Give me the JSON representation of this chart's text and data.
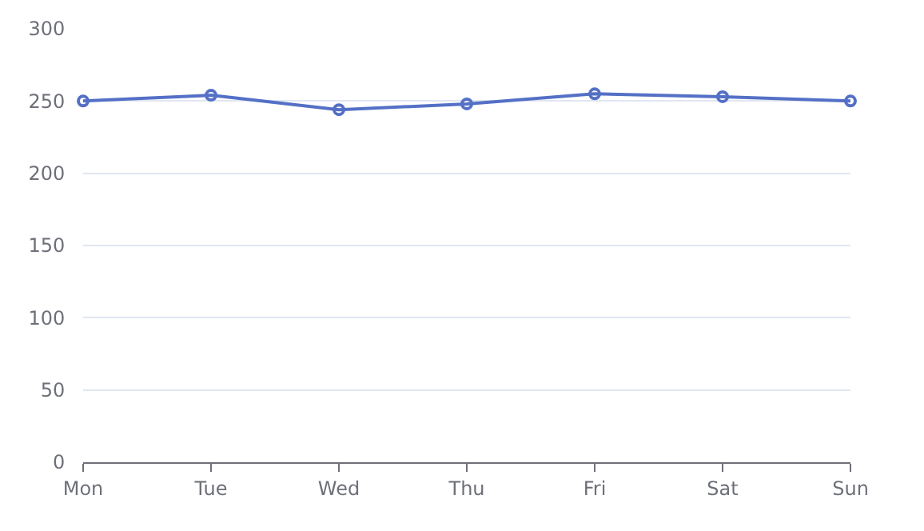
{
  "chart_data": {
    "type": "line",
    "categories": [
      "Mon",
      "Tue",
      "Wed",
      "Thu",
      "Fri",
      "Sat",
      "Sun"
    ],
    "series": [
      {
        "color": "#5470c6",
        "values": [
          250,
          254,
          244,
          248,
          255,
          253,
          250
        ]
      }
    ],
    "ylim": [
      0,
      300
    ],
    "yticks": [
      0,
      50,
      100,
      150,
      200,
      250,
      300
    ],
    "grid": "y",
    "marker": "circle",
    "line_style": "solid"
  }
}
